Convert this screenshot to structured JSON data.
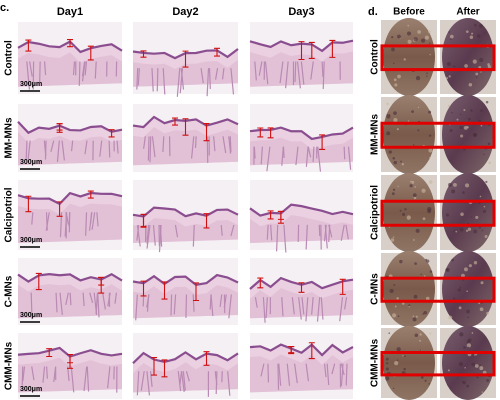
{
  "panel_c": {
    "label": "c.",
    "columns": [
      "Day1",
      "Day2",
      "Day3"
    ],
    "rows": [
      "Control",
      "MM-MNs",
      "Calcipotriol",
      "C-MNs",
      "CMM-MNs"
    ],
    "scale_bar": "300μm"
  },
  "panel_d": {
    "label": "d.",
    "columns": [
      "Before",
      "After"
    ],
    "rows": [
      "Control",
      "MM-MNs",
      "Calcipotriol",
      "C-MNs",
      "CMM-MNs"
    ]
  }
}
